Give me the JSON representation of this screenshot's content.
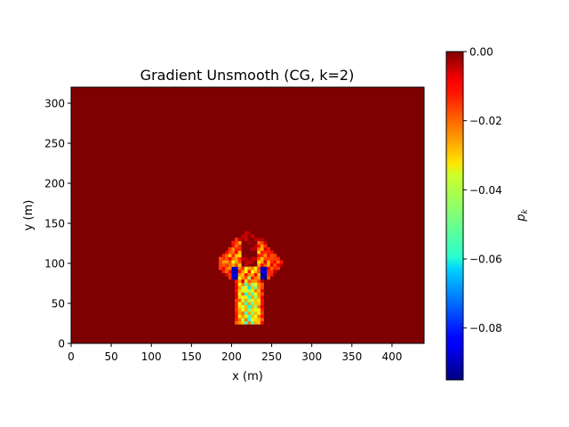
{
  "chart_data": {
    "type": "heatmap",
    "title": "Gradient Unsmooth (CG, k=2)",
    "xlabel": "x (m)",
    "ylabel": "y (m)",
    "xlim": [
      0,
      440
    ],
    "ylim": [
      0,
      320
    ],
    "x_ticks": [
      "0",
      "50",
      "100",
      "150",
      "200",
      "250",
      "300",
      "350",
      "400"
    ],
    "y_ticks": [
      "0",
      "50",
      "100",
      "150",
      "200",
      "250",
      "300"
    ],
    "colormap": "jet",
    "background_value": 0.0,
    "colorbar": {
      "label": "p_k",
      "range": [
        -0.095,
        0.0
      ],
      "ticks": [
        "0.00",
        "−0.02",
        "−0.04",
        "−0.06",
        "−0.08"
      ]
    },
    "anomaly": {
      "description_x_range_m": [
        190,
        260
      ],
      "description_y_range_m": [
        25,
        145
      ],
      "min_value": -0.095,
      "features": [
        {
          "region": "upper flared lobe edges",
          "x_m": [
            190,
            260
          ],
          "y_m": [
            80,
            145
          ],
          "value_range": [
            -0.045,
            -0.01
          ]
        },
        {
          "region": "deep blue spots",
          "x_m": [
            200,
            240
          ],
          "y_m": [
            80,
            95
          ],
          "value_range": [
            -0.095,
            -0.075
          ]
        },
        {
          "region": "lower stem",
          "x_m": [
            200,
            235
          ],
          "y_m": [
            25,
            75
          ],
          "value_range": [
            -0.065,
            -0.02
          ]
        }
      ]
    }
  },
  "colors": {
    "background": "#7f0000",
    "axes_edge": "#000000"
  }
}
